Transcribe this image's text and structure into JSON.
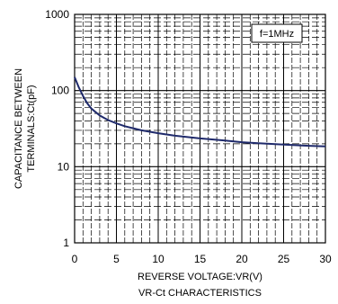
{
  "chart_data": {
    "type": "line",
    "title": "VR-Ct CHARACTERISTICS",
    "xlabel": "REVERSE VOLTAGE:VR(V)",
    "ylabel_line1": "CAPACITANCE BETWEEN",
    "ylabel_line2": "TERMINALS:Ct(pF)",
    "annotation": "f=1MHz",
    "xlim": [
      0,
      30
    ],
    "ylim": [
      1,
      1000
    ],
    "yscale": "log",
    "grid": true,
    "x_ticks": [
      0,
      5,
      10,
      15,
      20,
      25,
      30
    ],
    "x_tick_labels": [
      "0",
      "5",
      "10",
      "15",
      "20",
      "25",
      "30"
    ],
    "y_ticks": [
      1,
      10,
      100,
      1000
    ],
    "y_tick_labels": [
      "1",
      "10",
      "100",
      "1000"
    ],
    "series": [
      {
        "color": "#1f2a6b",
        "x": [
          0,
          0.5,
          1,
          1.5,
          2,
          3,
          4,
          5,
          6,
          7,
          8,
          10,
          12,
          15,
          18,
          20,
          22,
          25,
          28,
          30
        ],
        "y": [
          150,
          110,
          85,
          68,
          58,
          47,
          41,
          37,
          34,
          32,
          30,
          27.5,
          25.5,
          23.5,
          22,
          21,
          20.3,
          19.5,
          18.8,
          18.5
        ]
      }
    ]
  }
}
